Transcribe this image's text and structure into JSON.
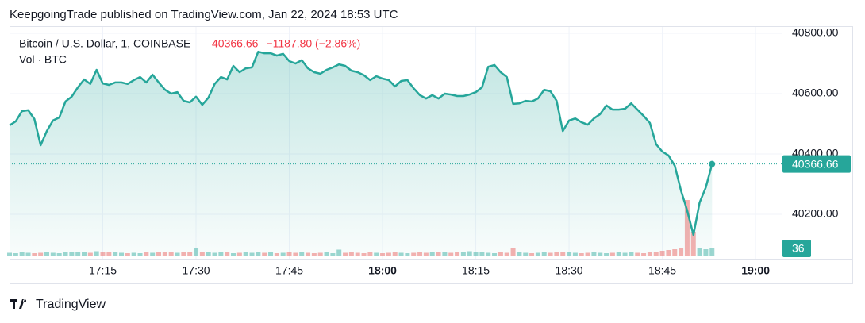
{
  "header": {
    "text": "KeepgoingTrade published on TradingView.com, Jan 22, 2024 18:53 UTC"
  },
  "footer": {
    "brand": "TradingView"
  },
  "chart_data": {
    "type": "line",
    "change_label": "−1187.80 (−2.86%)",
    "x": [
      1020,
      1021,
      1022,
      1023,
      1024,
      1025,
      1026,
      1027,
      1028,
      1029,
      1030,
      1031,
      1032,
      1033,
      1034,
      1035,
      1036,
      1037,
      1038,
      1039,
      1040,
      1041,
      1042,
      1043,
      1044,
      1045,
      1046,
      1047,
      1048,
      1049,
      1050,
      1051,
      1052,
      1053,
      1054,
      1055,
      1056,
      1057,
      1058,
      1059,
      1060,
      1061,
      1062,
      1063,
      1064,
      1065,
      1066,
      1067,
      1068,
      1069,
      1070,
      1071,
      1072,
      1073,
      1074,
      1075,
      1076,
      1077,
      1078,
      1079,
      1080,
      1081,
      1082,
      1083,
      1084,
      1085,
      1086,
      1087,
      1088,
      1089,
      1090,
      1091,
      1092,
      1093,
      1094,
      1095,
      1096,
      1097,
      1098,
      1099,
      1100,
      1101,
      1102,
      1103,
      1104,
      1105,
      1106,
      1107,
      1108,
      1109,
      1110,
      1111,
      1112,
      1113,
      1114,
      1115,
      1116,
      1117,
      1118,
      1119,
      1120,
      1121,
      1122,
      1123,
      1124,
      1125,
      1126,
      1127,
      1128,
      1129,
      1130,
      1131,
      1132,
      1133
    ],
    "series": [
      {
        "name": "Bitcoin / U.S. Dollar, 1, COINBASE",
        "color": "#26a69a",
        "values": [
          40495,
          40508,
          40542,
          40545,
          40516,
          40429,
          40476,
          40511,
          40521,
          40574,
          40590,
          40621,
          40647,
          40632,
          40679,
          40634,
          40629,
          40637,
          40637,
          40632,
          40645,
          40655,
          40637,
          40663,
          40637,
          40613,
          40600,
          40605,
          40576,
          40571,
          40590,
          40563,
          40587,
          40632,
          40655,
          40647,
          40692,
          40671,
          40684,
          40687,
          40739,
          40734,
          40734,
          40726,
          40732,
          40708,
          40700,
          40711,
          40684,
          40671,
          40666,
          40679,
          40687,
          40697,
          40692,
          40676,
          40671,
          40661,
          40645,
          40658,
          40650,
          40645,
          40624,
          40642,
          40645,
          40618,
          40595,
          40584,
          40595,
          40584,
          40600,
          40597,
          40592,
          40592,
          40597,
          40605,
          40621,
          40689,
          40695,
          40671,
          40655,
          40566,
          40568,
          40576,
          40574,
          40584,
          40613,
          40608,
          40576,
          40476,
          40511,
          40518,
          40505,
          40497,
          40518,
          40532,
          40561,
          40547,
          40547,
          40550,
          40568,
          40547,
          40526,
          40503,
          40432,
          40408,
          40395,
          40361,
          40279,
          40213,
          40132,
          40239,
          40289,
          40366.66
        ]
      },
      {
        "name": "Vol · BTC",
        "axis": "y2",
        "up_color": "#26a69a",
        "down_color": "#ef5350",
        "values": [
          14,
          12,
          16,
          14,
          12,
          14,
          16,
          14,
          12,
          18,
          20,
          16,
          18,
          14,
          22,
          16,
          20,
          18,
          14,
          12,
          14,
          12,
          16,
          14,
          18,
          16,
          20,
          14,
          16,
          18,
          40,
          20,
          16,
          14,
          18,
          16,
          12,
          14,
          16,
          14,
          18,
          14,
          16,
          12,
          14,
          16,
          14,
          18,
          14,
          12,
          14,
          16,
          12,
          30,
          14,
          16,
          14,
          12,
          16,
          14,
          12,
          14,
          16,
          14,
          12,
          14,
          16,
          14,
          20,
          18,
          16,
          14,
          18,
          20,
          22,
          18,
          16,
          14,
          12,
          16,
          14,
          36,
          16,
          14,
          12,
          14,
          16,
          14,
          18,
          20,
          16,
          14,
          12,
          14,
          16,
          14,
          12,
          14,
          16,
          14,
          16,
          14,
          12,
          20,
          18,
          24,
          28,
          32,
          40,
          280,
          120,
          40,
          32,
          36
        ]
      }
    ],
    "xlim": [
      1020,
      1144.2
    ],
    "xticks": [
      {
        "value": 1035,
        "label": "17:15"
      },
      {
        "value": 1050,
        "label": "17:30"
      },
      {
        "value": 1065,
        "label": "17:45"
      },
      {
        "value": 1080,
        "label": "18:00"
      },
      {
        "value": 1095,
        "label": "18:15"
      },
      {
        "value": 1110,
        "label": "18:30"
      },
      {
        "value": 1125,
        "label": "18:45"
      },
      {
        "value": 1140,
        "label": "19:00"
      }
    ],
    "ylim": [
      40063.2,
      40818.4
    ],
    "yticks": [
      {
        "value": 40200,
        "label": "40200.00"
      },
      {
        "value": 40400,
        "label": "40400.00"
      },
      {
        "value": 40600,
        "label": "40600.00"
      },
      {
        "value": 40800,
        "label": "40800.00"
      }
    ],
    "y2lim": [
      0,
      1148
    ],
    "grid": true
  }
}
